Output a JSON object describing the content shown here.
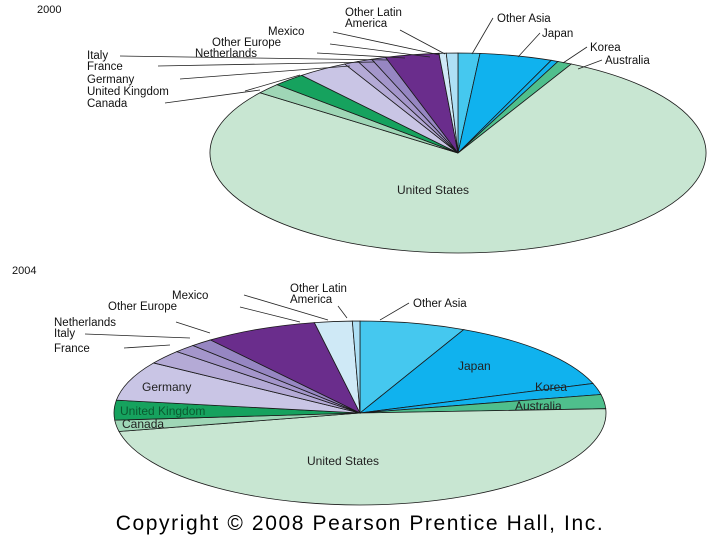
{
  "copyright": "Copyright © 2008 Pearson Prentice Hall, Inc.",
  "chart_data": [
    {
      "type": "pie",
      "title": "2000",
      "categories": [
        "Other Asia",
        "Japan",
        "Korea",
        "Australia",
        "United States",
        "Canada",
        "United Kingdom",
        "Germany",
        "France",
        "Italy",
        "Netherlands",
        "Other Europe",
        "Mexico",
        "Other Latin America"
      ],
      "values": [
        1.5,
        5.0,
        0.5,
        1.0,
        82.4,
        1.8,
        2.3,
        3.5,
        1.0,
        1.0,
        1.0,
        3.7,
        0.5,
        0.8
      ],
      "colors": [
        "#45c8ef",
        "#10b2ee",
        "#10b2ee",
        "#4fbf8c",
        "#c8e6d2",
        "#9fd6b6",
        "#16a25e",
        "#c9c5e5",
        "#b4aad6",
        "#a496cb",
        "#9686c2",
        "#6a2d8c",
        "#cfe9f6",
        "#aee0f5"
      ]
    },
    {
      "type": "pie",
      "title": "2004",
      "categories": [
        "Other Asia",
        "Japan",
        "Korea",
        "Australia",
        "United States",
        "Canada",
        "United Kingdom",
        "Germany",
        "France",
        "Italy",
        "Netherlands",
        "Other Europe",
        "Mexico",
        "Other Latin America"
      ],
      "values": [
        7.0,
        13.0,
        2.0,
        2.5,
        48.0,
        2.0,
        3.5,
        7.0,
        2.5,
        1.5,
        1.5,
        7.5,
        2.5,
        0.5
      ],
      "colors": [
        "#45c8ef",
        "#10b2ee",
        "#10b2ee",
        "#4fbf8c",
        "#c8e6d2",
        "#9fd6b6",
        "#16a25e",
        "#c9c5e5",
        "#b4aad6",
        "#a496cb",
        "#9686c2",
        "#6a2d8c",
        "#cfe9f6",
        "#aee0f5"
      ]
    }
  ]
}
